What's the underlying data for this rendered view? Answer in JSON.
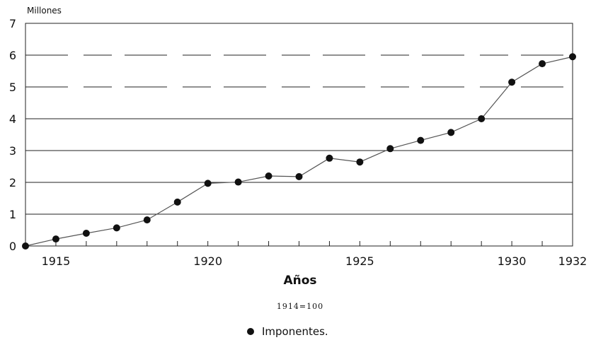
{
  "chart_data": {
    "type": "line",
    "unit_label": "Millones",
    "xlabel": "Años",
    "note": "1914=100",
    "ylim": [
      0,
      7
    ],
    "xlim": [
      1914,
      1932
    ],
    "yticks": [
      0,
      1,
      2,
      3,
      4,
      5,
      6,
      7
    ],
    "xticks": [
      1915,
      1920,
      1925,
      1930,
      1932
    ],
    "grid": "horizontal",
    "legend_position": "bottom-center",
    "series": [
      {
        "name": "Imponentes.",
        "x": [
          1914,
          1915,
          1916,
          1917,
          1918,
          1919,
          1920,
          1921,
          1922,
          1923,
          1924,
          1925,
          1926,
          1927,
          1928,
          1929,
          1930,
          1931,
          1932
        ],
        "y": [
          0,
          0.22,
          0.4,
          0.57,
          0.82,
          1.38,
          1.97,
          2.01,
          2.2,
          2.18,
          2.76,
          2.64,
          3.06,
          3.32,
          3.57,
          4.0,
          5.15,
          5.73,
          5.95
        ]
      }
    ],
    "colors": {
      "line": "#555555",
      "marker": "#111111",
      "grid": "#222222"
    }
  }
}
